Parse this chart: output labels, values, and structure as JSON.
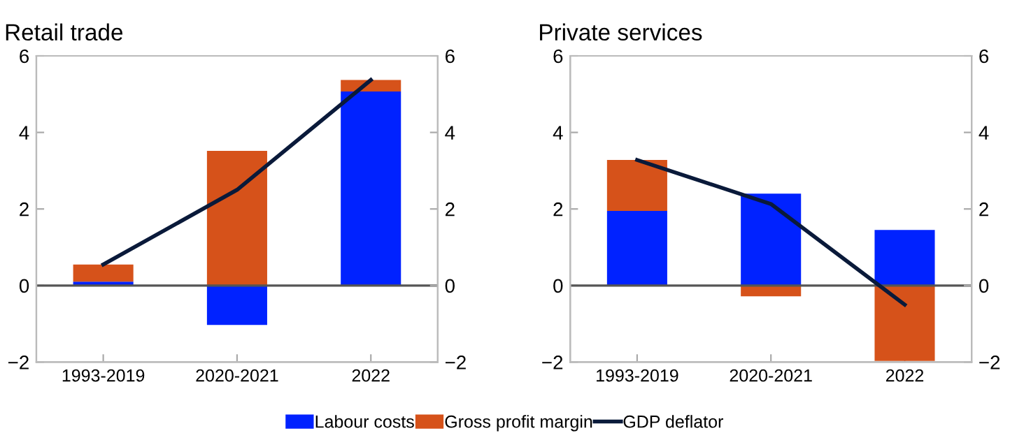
{
  "chart_data": [
    {
      "type": "bar",
      "title": "Retail trade",
      "categories": [
        "1993-2019",
        "2020-2021",
        "2022"
      ],
      "stacked": true,
      "series": [
        {
          "name": "Labour costs",
          "color": "#0022ff",
          "values": [
            0.1,
            -1.03,
            5.07
          ]
        },
        {
          "name": "Gross profit margin",
          "color": "#d6521a",
          "values": [
            0.45,
            3.52,
            0.3
          ]
        },
        {
          "name": "GDP deflator",
          "type": "line",
          "color": "#0a1a3a",
          "values": [
            0.55,
            2.5,
            5.37
          ]
        }
      ],
      "ylim": [
        -2,
        6
      ],
      "yticks": [
        {
          "value": -2,
          "label": "−2"
        },
        0,
        2,
        4,
        6
      ],
      "y2lim": [
        -2,
        6
      ],
      "y2ticks": [
        {
          "value": -2,
          "label": "−2"
        },
        0,
        2,
        4,
        6
      ],
      "ref_lines": [
        {
          "axis": "y",
          "value": 0,
          "color": "#555555"
        }
      ],
      "legend": "bottom",
      "grid": false
    },
    {
      "type": "bar",
      "title": "Private services",
      "categories": [
        "1993-2019",
        "2020-2021",
        "2022"
      ],
      "stacked": true,
      "series": [
        {
          "color": "#0022ff",
          "values": [
            1.95,
            2.4,
            1.45
          ]
        },
        {
          "color": "#d6521a",
          "values": [
            1.33,
            -0.28,
            -1.97
          ]
        },
        {
          "type": "line",
          "color": "#0a1a3a",
          "values": [
            3.28,
            2.13,
            -0.5
          ]
        }
      ],
      "ylim": [
        -2,
        6
      ],
      "yticks": [
        {
          "value": -2,
          "label": "−2"
        },
        0,
        2,
        4,
        6
      ],
      "y2lim": [
        -2,
        6
      ],
      "y2ticks": [
        {
          "value": -2,
          "label": "−2"
        },
        0,
        2,
        4,
        6
      ],
      "ref_lines": [
        {
          "axis": "y",
          "value": 0,
          "color": "#555555"
        }
      ],
      "grid": false
    }
  ]
}
